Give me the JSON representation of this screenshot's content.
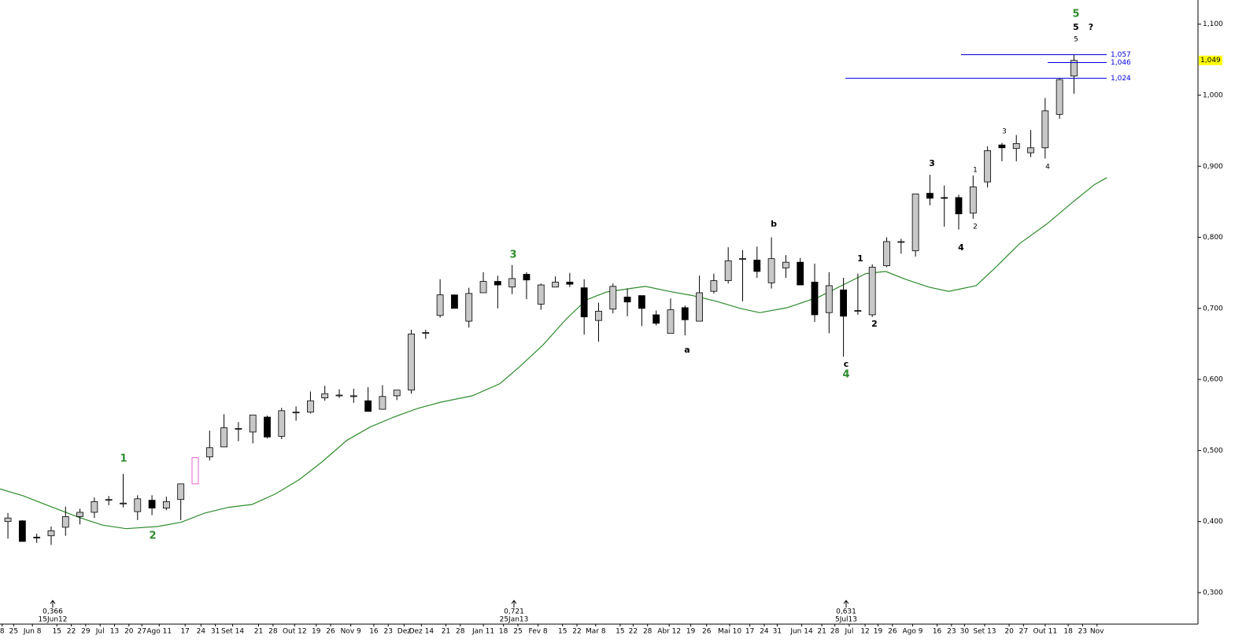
{
  "chart_data": {
    "type": "candlestick",
    "candles": {
      "x": [
        0,
        1,
        2,
        3,
        4,
        5,
        6,
        7,
        8,
        9,
        10,
        11,
        12,
        13,
        14,
        15,
        16,
        17,
        18,
        19,
        20,
        21,
        22,
        23,
        24,
        25,
        26,
        27,
        28,
        29,
        30,
        31,
        32,
        33,
        34,
        35,
        36,
        37,
        38,
        39,
        40,
        41,
        42,
        43,
        44,
        45,
        46,
        47,
        48,
        49,
        50,
        51,
        52,
        53,
        54,
        55,
        56,
        57,
        58,
        59,
        60,
        61,
        62,
        63,
        64,
        65,
        66,
        67,
        68,
        69,
        70,
        71,
        72,
        73,
        74
      ],
      "open": [
        0.4,
        0.401,
        0.378,
        0.38,
        0.392,
        0.407,
        0.413,
        0.43,
        0.425,
        0.414,
        0.43,
        0.419,
        0.431,
        0.453,
        0.491,
        0.505,
        0.53,
        0.526,
        0.547,
        0.52,
        0.553,
        0.554,
        0.574,
        0.577,
        0.576,
        0.57,
        0.558,
        0.577,
        0.585,
        0.665,
        0.69,
        0.719,
        0.682,
        0.722,
        0.738,
        0.73,
        0.748,
        0.706,
        0.73,
        0.737,
        0.729,
        0.683,
        0.699,
        0.716,
        0.718,
        0.691,
        0.665,
        0.701,
        0.682,
        0.724,
        0.739,
        0.769,
        0.768,
        0.736,
        0.757,
        0.765,
        0.737,
        0.694,
        0.726,
        0.697,
        0.691,
        0.76,
        0.793,
        0.781,
        0.862,
        0.856,
        0.856,
        0.834,
        0.878,
        0.93,
        0.925,
        0.919,
        0.926,
        0.973,
        1.027
      ],
      "high": [
        0.412,
        0.402,
        0.383,
        0.393,
        0.421,
        0.418,
        0.434,
        0.436,
        0.467,
        0.437,
        0.437,
        0.435,
        0.453,
        0.49,
        0.528,
        0.551,
        0.54,
        0.55,
        0.549,
        0.56,
        0.562,
        0.583,
        0.591,
        0.586,
        0.587,
        0.589,
        0.592,
        0.585,
        0.67,
        0.67,
        0.741,
        0.719,
        0.729,
        0.751,
        0.746,
        0.761,
        0.751,
        0.735,
        0.745,
        0.75,
        0.741,
        0.708,
        0.735,
        0.728,
        0.718,
        0.697,
        0.714,
        0.704,
        0.746,
        0.749,
        0.786,
        0.782,
        0.787,
        0.8,
        0.775,
        0.771,
        0.763,
        0.751,
        0.743,
        0.749,
        0.762,
        0.8,
        0.798,
        0.861,
        0.888,
        0.873,
        0.86,
        0.887,
        0.928,
        0.933,
        0.944,
        0.951,
        0.996,
        1.024,
        1.057
      ],
      "low": [
        0.376,
        0.372,
        0.37,
        0.367,
        0.38,
        0.396,
        0.405,
        0.423,
        0.42,
        0.402,
        0.409,
        0.416,
        0.402,
        0.453,
        0.486,
        0.505,
        0.513,
        0.51,
        0.517,
        0.516,
        0.542,
        0.552,
        0.57,
        0.574,
        0.567,
        0.555,
        0.558,
        0.571,
        0.58,
        0.657,
        0.687,
        0.7,
        0.673,
        0.722,
        0.7,
        0.72,
        0.713,
        0.698,
        0.73,
        0.73,
        0.663,
        0.653,
        0.693,
        0.689,
        0.675,
        0.676,
        0.665,
        0.662,
        0.682,
        0.721,
        0.735,
        0.71,
        0.743,
        0.728,
        0.743,
        0.733,
        0.681,
        0.665,
        0.632,
        0.691,
        0.688,
        0.758,
        0.777,
        0.773,
        0.845,
        0.815,
        0.811,
        0.826,
        0.87,
        0.907,
        0.907,
        0.913,
        0.911,
        0.967,
        1.002
      ],
      "close": [
        0.405,
        0.372,
        0.377,
        0.387,
        0.407,
        0.413,
        0.428,
        0.431,
        0.426,
        0.432,
        0.419,
        0.428,
        0.453,
        0.49,
        0.504,
        0.532,
        0.531,
        0.55,
        0.519,
        0.556,
        0.554,
        0.57,
        0.58,
        0.578,
        0.577,
        0.555,
        0.576,
        0.585,
        0.664,
        0.666,
        0.719,
        0.7,
        0.721,
        0.738,
        0.733,
        0.742,
        0.74,
        0.733,
        0.737,
        0.734,
        0.688,
        0.696,
        0.731,
        0.709,
        0.7,
        0.679,
        0.698,
        0.684,
        0.722,
        0.739,
        0.767,
        0.77,
        0.752,
        0.77,
        0.765,
        0.733,
        0.691,
        0.732,
        0.689,
        0.697,
        0.758,
        0.794,
        0.794,
        0.861,
        0.855,
        0.855,
        0.833,
        0.871,
        0.922,
        0.926,
        0.932,
        0.926,
        0.978,
        1.022,
        1.049
      ],
      "up_color": "#c8c8c8",
      "down_color": "#000000"
    },
    "highlight": {
      "index": 13,
      "color": "#e040c0"
    },
    "ma": {
      "color": "#2e8b2e",
      "x": [
        -0.55,
        1.09,
        2.73,
        4.92,
        6.56,
        8.2,
        10.38,
        12.02,
        13.66,
        15.3,
        16.94,
        18.58,
        20.22,
        21.86,
        23.5,
        25.14,
        26.78,
        28.42,
        30.05,
        32.24,
        34.15,
        35.52,
        37.16,
        38.8,
        40.16,
        41.53,
        43.17,
        44.26,
        45.9,
        47.54,
        49.18,
        50.82,
        52.19,
        54.1,
        56.28,
        58.47,
        59.56,
        60.93,
        62.3,
        63.93,
        65.3,
        67.21,
        68.58,
        70.22,
        72.13,
        73.77,
        75.41,
        76.28
      ],
      "values": [
        0.446,
        0.436,
        0.423,
        0.406,
        0.395,
        0.39,
        0.393,
        0.399,
        0.412,
        0.42,
        0.424,
        0.439,
        0.459,
        0.485,
        0.514,
        0.533,
        0.547,
        0.559,
        0.568,
        0.577,
        0.594,
        0.618,
        0.649,
        0.686,
        0.712,
        0.723,
        0.728,
        0.731,
        0.724,
        0.718,
        0.71,
        0.7,
        0.694,
        0.701,
        0.716,
        0.738,
        0.749,
        0.752,
        0.741,
        0.73,
        0.724,
        0.732,
        0.758,
        0.791,
        0.819,
        0.847,
        0.874,
        0.884
      ]
    },
    "levels": {
      "color": "#0000dd",
      "items": [
        {
          "value": 1.057,
          "label": "1,057"
        },
        {
          "value": 1.046,
          "label": "1,046"
        },
        {
          "value": 1.024,
          "label": "1,024"
        }
      ]
    },
    "last": {
      "value": 1.049,
      "label": "1,049",
      "color": "#ffff00"
    },
    "annotations": [
      "5",
      "5",
      "?",
      "5",
      "1",
      "2",
      "3",
      "4",
      "3",
      "1",
      "2",
      "4",
      "3",
      "4",
      "b",
      "a",
      "c",
      "1",
      "2"
    ],
    "extremes": [
      {
        "value": 0.366,
        "label": "0,366",
        "date": "15Jun12"
      },
      {
        "value": 0.721,
        "label": "0,721",
        "date": "25Jan13"
      },
      {
        "value": 0.631,
        "label": "0,631",
        "date": "5Jul13"
      }
    ],
    "xlim": [
      -0.55,
      82.5
    ],
    "ylim": [
      0.259,
      1.134
    ],
    "yticks": [
      {
        "value": 1.1,
        "label": "1,100"
      },
      {
        "value": 1.0,
        "label": "1,000"
      },
      {
        "value": 0.9,
        "label": "0,900"
      },
      {
        "value": 0.8,
        "label": "0,800"
      },
      {
        "value": 0.7,
        "label": "0,700"
      },
      {
        "value": 0.6,
        "label": "0,600"
      },
      {
        "value": 0.5,
        "label": "0,500"
      },
      {
        "value": 0.4,
        "label": "0,400"
      },
      {
        "value": 0.3,
        "label": "0,300"
      }
    ],
    "xticks": [
      {
        "value": -0.4,
        "label": "8"
      },
      {
        "value": 0.4,
        "label": "25"
      },
      {
        "value": 1.7,
        "label": "Jun 8"
      },
      {
        "value": 3.4,
        "label": "15"
      },
      {
        "value": 4.4,
        "label": "22"
      },
      {
        "value": 5.4,
        "label": "29"
      },
      {
        "value": 6.4,
        "label": "Jul"
      },
      {
        "value": 7.4,
        "label": "13"
      },
      {
        "value": 8.4,
        "label": "20"
      },
      {
        "value": 9.3,
        "label": "27"
      },
      {
        "value": 10.5,
        "label": "Ago 11"
      },
      {
        "value": 12.3,
        "label": "17"
      },
      {
        "value": 13.4,
        "label": "24"
      },
      {
        "value": 14.4,
        "label": "31"
      },
      {
        "value": 15.6,
        "label": "Set 14"
      },
      {
        "value": 17.4,
        "label": "21"
      },
      {
        "value": 18.4,
        "label": "28"
      },
      {
        "value": 19.9,
        "label": "Out 12"
      },
      {
        "value": 21.4,
        "label": "19"
      },
      {
        "value": 22.4,
        "label": "26"
      },
      {
        "value": 23.8,
        "label": "Nov 9"
      },
      {
        "value": 25.4,
        "label": "16"
      },
      {
        "value": 26.4,
        "label": "23"
      },
      {
        "value": 27.5,
        "label": "Dez"
      },
      {
        "value": 28.7,
        "label": "Dez 14"
      },
      {
        "value": 30.4,
        "label": "21"
      },
      {
        "value": 31.4,
        "label": "28"
      },
      {
        "value": 33.0,
        "label": "Jan 11"
      },
      {
        "value": 34.4,
        "label": "18"
      },
      {
        "value": 35.4,
        "label": "25"
      },
      {
        "value": 36.8,
        "label": "Fev 8"
      },
      {
        "value": 38.5,
        "label": "15"
      },
      {
        "value": 39.5,
        "label": "22"
      },
      {
        "value": 40.8,
        "label": "Mar 8"
      },
      {
        "value": 42.5,
        "label": "15"
      },
      {
        "value": 43.4,
        "label": "22"
      },
      {
        "value": 44.4,
        "label": "28"
      },
      {
        "value": 45.9,
        "label": "Abr 12"
      },
      {
        "value": 47.4,
        "label": "19"
      },
      {
        "value": 48.5,
        "label": "26"
      },
      {
        "value": 50.1,
        "label": "Mai 10"
      },
      {
        "value": 51.5,
        "label": "17"
      },
      {
        "value": 52.5,
        "label": "24"
      },
      {
        "value": 53.4,
        "label": "31"
      },
      {
        "value": 55.1,
        "label": "Jun 14"
      },
      {
        "value": 56.5,
        "label": "21"
      },
      {
        "value": 57.4,
        "label": "28"
      },
      {
        "value": 58.4,
        "label": "Jul"
      },
      {
        "value": 59.5,
        "label": "12"
      },
      {
        "value": 60.4,
        "label": "19"
      },
      {
        "value": 61.4,
        "label": "26"
      },
      {
        "value": 62.8,
        "label": "Ago 9"
      },
      {
        "value": 64.5,
        "label": "16"
      },
      {
        "value": 65.5,
        "label": "23"
      },
      {
        "value": 66.4,
        "label": "30"
      },
      {
        "value": 67.8,
        "label": "Set 13"
      },
      {
        "value": 69.5,
        "label": "20"
      },
      {
        "value": 70.5,
        "label": "27"
      },
      {
        "value": 72.0,
        "label": "Out 11"
      },
      {
        "value": 73.6,
        "label": "18"
      },
      {
        "value": 74.6,
        "label": "23"
      },
      {
        "value": 75.6,
        "label": "Nov"
      }
    ]
  }
}
